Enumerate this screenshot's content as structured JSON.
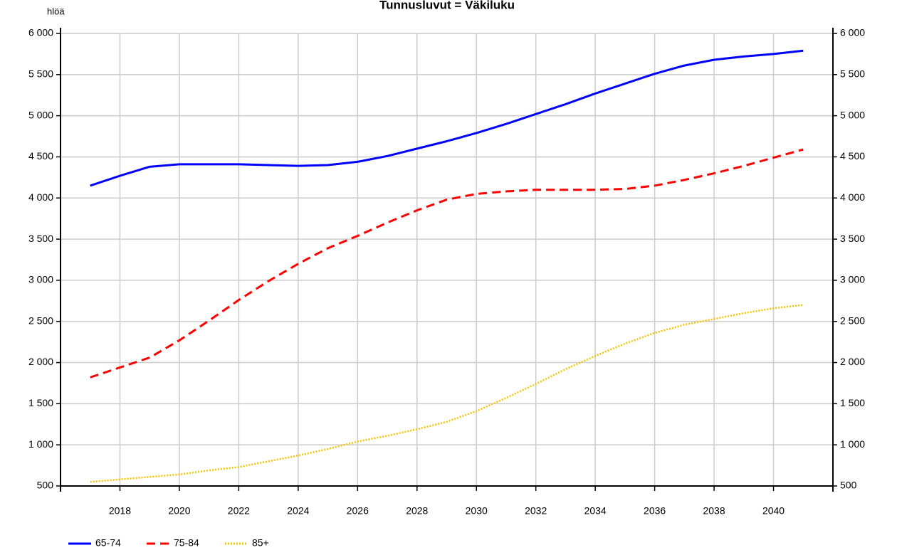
{
  "chart_data": {
    "type": "line",
    "title": "Tunnusluvut = Väkiluku",
    "ylabel": "hlöä",
    "x": [
      2017,
      2018,
      2019,
      2020,
      2021,
      2022,
      2023,
      2024,
      2025,
      2026,
      2027,
      2028,
      2029,
      2030,
      2031,
      2032,
      2033,
      2034,
      2035,
      2036,
      2037,
      2038,
      2039,
      2040,
      2041
    ],
    "xlim": [
      2016,
      2042
    ],
    "xticks": [
      2018,
      2020,
      2022,
      2024,
      2026,
      2028,
      2030,
      2032,
      2034,
      2036,
      2038,
      2040
    ],
    "ylim": [
      500,
      6000
    ],
    "yticks": [
      500,
      {
        "value": 1000,
        "label": "1 000"
      },
      {
        "value": 1500,
        "label": "1 500"
      },
      {
        "value": 2000,
        "label": "2 000"
      },
      {
        "value": 2500,
        "label": "2 500"
      },
      {
        "value": 3000,
        "label": "3 000"
      },
      {
        "value": 3500,
        "label": "3 500"
      },
      {
        "value": 4000,
        "label": "4 000"
      },
      {
        "value": 4500,
        "label": "4 500"
      },
      {
        "value": 5000,
        "label": "5 000"
      },
      {
        "value": 5500,
        "label": "5 500"
      },
      {
        "value": 6000,
        "label": "6 000"
      }
    ],
    "grid": true,
    "legend": "bottom-left",
    "series": [
      {
        "name": "65-74",
        "color": "#0000ff",
        "style": "solid",
        "values": [
          4150,
          4270,
          4380,
          4410,
          4410,
          4410,
          4400,
          4390,
          4400,
          4440,
          4510,
          4600,
          4690,
          4790,
          4900,
          5020,
          5140,
          5270,
          5390,
          5510,
          5610,
          5680,
          5720,
          5750,
          5790
        ]
      },
      {
        "name": "75-84",
        "color": "#ff0000",
        "style": "dashed",
        "values": [
          1820,
          1940,
          2060,
          2270,
          2510,
          2760,
          2990,
          3200,
          3390,
          3540,
          3700,
          3850,
          3980,
          4050,
          4080,
          4100,
          4100,
          4100,
          4110,
          4150,
          4220,
          4300,
          4390,
          4490,
          4590
        ]
      },
      {
        "name": "85+",
        "color": "#f5c400",
        "style": "dotted",
        "values": [
          550,
          580,
          610,
          640,
          690,
          730,
          800,
          870,
          950,
          1040,
          1110,
          1190,
          1280,
          1410,
          1570,
          1740,
          1920,
          2080,
          2230,
          2360,
          2460,
          2530,
          2600,
          2660,
          2700
        ]
      }
    ]
  }
}
